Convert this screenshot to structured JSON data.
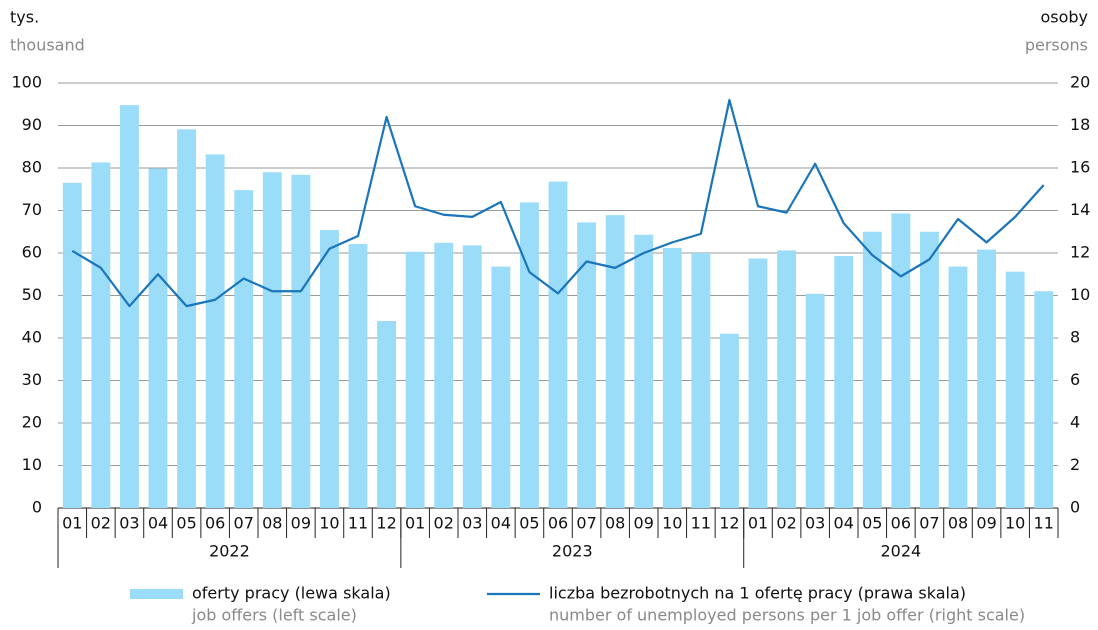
{
  "chart_data": {
    "type": "bar_line",
    "y_title": "tys.",
    "y_title_en": "thousand",
    "y2_title": "osoby",
    "y2_title_en": "persons",
    "categories": [
      "01",
      "02",
      "03",
      "04",
      "05",
      "06",
      "07",
      "08",
      "09",
      "10",
      "11",
      "12",
      "01",
      "02",
      "03",
      "04",
      "05",
      "06",
      "07",
      "08",
      "09",
      "10",
      "11",
      "12",
      "01",
      "02",
      "03",
      "04",
      "05",
      "06",
      "07",
      "08",
      "09",
      "10",
      "11"
    ],
    "year_groups": [
      "2022",
      "2023",
      "2024"
    ],
    "series": [
      {
        "name": "oferty pracy (lewa skala)",
        "name_en": "job offers (left scale)",
        "kind": "bar",
        "color": "#9bdcf9",
        "values": [
          76.5,
          81.3,
          94.8,
          79.9,
          89.1,
          83.2,
          74.8,
          79.0,
          78.4,
          65.4,
          62.1,
          44.0,
          60.3,
          62.4,
          61.8,
          56.8,
          71.9,
          76.8,
          67.2,
          68.9,
          64.3,
          61.2,
          60.0,
          41.0,
          58.7,
          60.6,
          50.4,
          59.3,
          65.0,
          69.3,
          65.0,
          56.8,
          60.8,
          55.6,
          51.0
        ]
      },
      {
        "name": "liczba bezrobotnych na 1 ofertę pracy (prawa skala)",
        "name_en": "number of unemployed persons per 1 job offer (right scale)",
        "kind": "line",
        "axis": "y2",
        "color": "#1a75bb",
        "values": [
          12.1,
          11.3,
          9.5,
          11.0,
          9.5,
          9.8,
          10.8,
          10.2,
          10.2,
          12.2,
          12.8,
          18.4,
          14.2,
          13.8,
          13.7,
          14.4,
          11.1,
          10.1,
          11.6,
          11.3,
          12.0,
          12.5,
          12.9,
          19.2,
          14.2,
          13.9,
          16.2,
          13.4,
          11.9,
          10.9,
          11.7,
          13.6,
          12.5,
          13.7,
          15.2
        ]
      }
    ],
    "ylim": [
      0,
      100
    ],
    "yticks": [
      0,
      10,
      20,
      30,
      40,
      50,
      60,
      70,
      80,
      90,
      100
    ],
    "y2lim": [
      0,
      20
    ],
    "y2ticks": [
      0,
      2,
      4,
      6,
      8,
      10,
      12,
      14,
      16,
      18,
      20
    ],
    "grid": true
  }
}
